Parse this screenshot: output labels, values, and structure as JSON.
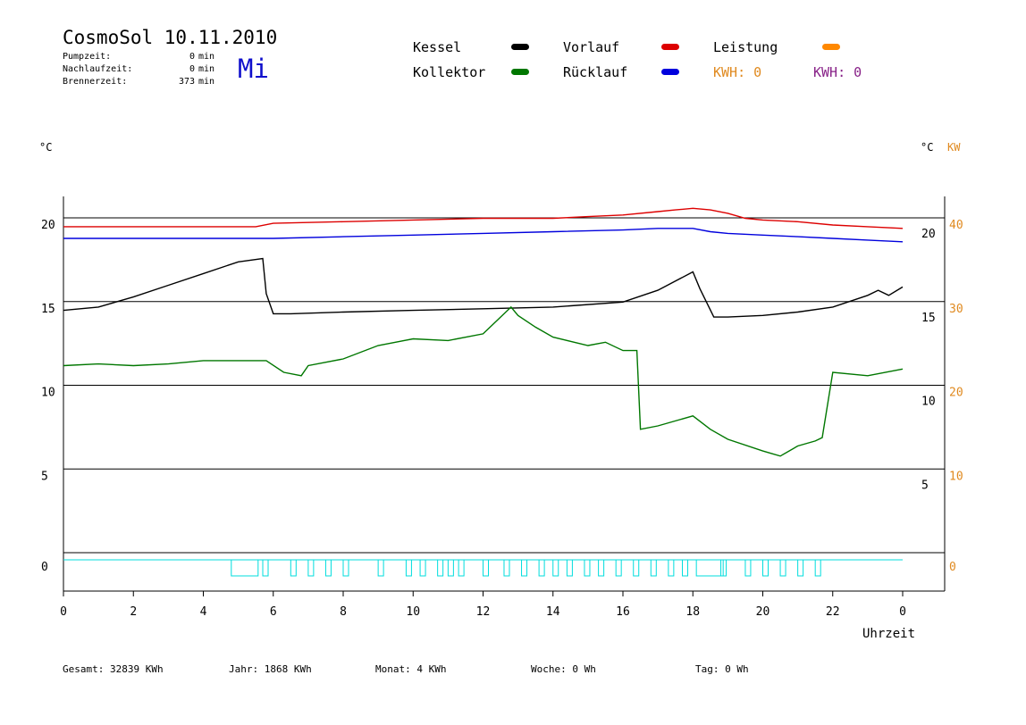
{
  "header": {
    "title": "CosmoSol 10.11.2010",
    "weekday": "Mi",
    "stats": [
      {
        "label": "Pumpzeit:",
        "value": "0",
        "unit": "min"
      },
      {
        "label": "Nachlaufzeit:",
        "value": "0",
        "unit": "min"
      },
      {
        "label": "Brennerzeit:",
        "value": "373",
        "unit": "min"
      }
    ]
  },
  "legend": {
    "kessel": "Kessel",
    "kollektor": "Kollektor",
    "vorlauf": "Vorlauf",
    "ruecklauf": "Rücklauf",
    "leistung": "Leistung",
    "kwh_orange": "KWH: 0",
    "kwh_purple": "KWH: 0"
  },
  "colors": {
    "kessel": "#000000",
    "kollektor": "#007700",
    "vorlauf": "#dd0000",
    "ruecklauf": "#0000dd",
    "leistung": "#ff8800",
    "kwh_purple": "#882288",
    "pump": "#00dddd",
    "weekday": "#1010cc"
  },
  "axes": {
    "left_unit": "°C",
    "right_unit_c": "°C",
    "right_unit_kw": "KW",
    "xlabel": "Uhrzeit"
  },
  "footer": {
    "gesamt": "Gesamt:  32839 KWh",
    "jahr": "Jahr:  1868 KWh",
    "monat": "Monat:       4 KWh",
    "woche": "Woche:     0 Wh",
    "tag": "Tag:     0 Wh"
  },
  "chart_data": {
    "type": "line",
    "title": "",
    "xlabel": "Uhrzeit",
    "ylabel": "°C",
    "xlim": [
      0,
      24
    ],
    "ylim_left": [
      -1.5,
      20.5
    ],
    "x_ticks": [
      "0",
      "2",
      "4",
      "6",
      "8",
      "10",
      "12",
      "14",
      "16",
      "18",
      "20",
      "22",
      "0"
    ],
    "y_ticks_left": [
      "0",
      "5",
      "10",
      "15",
      "20"
    ],
    "y_ticks_right_outer": [
      "20",
      "15",
      "10",
      "5"
    ],
    "y_ticks_right_kw": [
      "0",
      "10",
      "20",
      "30",
      "40"
    ],
    "series": [
      {
        "name": "Vorlauf",
        "color": "#dd0000",
        "x": [
          0,
          2,
          4,
          5.5,
          6,
          8,
          10,
          12,
          14,
          15,
          16,
          17,
          17.5,
          18,
          18.5,
          19,
          19.5,
          20,
          21,
          22,
          23,
          24
        ],
        "y": [
          19.9,
          19.9,
          19.9,
          19.9,
          20.1,
          20.2,
          20.3,
          20.4,
          20.4,
          20.5,
          20.6,
          20.8,
          20.9,
          21.0,
          20.9,
          20.7,
          20.4,
          20.3,
          20.2,
          20.0,
          19.9,
          19.8
        ]
      },
      {
        "name": "Rücklauf",
        "color": "#0000dd",
        "x": [
          0,
          2,
          4,
          5.5,
          6,
          8,
          10,
          12,
          14,
          16,
          17,
          18,
          18.5,
          19,
          20,
          21,
          22,
          23,
          24
        ],
        "y": [
          19.2,
          19.2,
          19.2,
          19.2,
          19.2,
          19.3,
          19.4,
          19.5,
          19.6,
          19.7,
          19.8,
          19.8,
          19.6,
          19.5,
          19.4,
          19.3,
          19.2,
          19.1,
          19.0
        ]
      },
      {
        "name": "Kessel",
        "color": "#000000",
        "x": [
          0,
          1,
          2,
          3,
          4,
          5,
          5.7,
          5.8,
          6,
          6.5,
          8,
          10,
          12,
          14,
          16,
          17,
          18,
          18.2,
          18.6,
          19,
          20,
          21,
          22,
          23,
          23.3,
          23.6,
          24
        ],
        "y": [
          14.9,
          15.1,
          15.7,
          16.4,
          17.1,
          17.8,
          18.0,
          15.9,
          14.7,
          14.7,
          14.8,
          14.9,
          15.0,
          15.1,
          15.4,
          16.1,
          17.2,
          16.2,
          14.5,
          14.5,
          14.6,
          14.8,
          15.1,
          15.8,
          16.1,
          15.8,
          16.3
        ]
      },
      {
        "name": "Kollektor",
        "color": "#007700",
        "x": [
          0,
          1,
          2,
          3,
          4,
          5,
          5.8,
          6.3,
          6.8,
          7,
          8,
          9,
          10,
          11,
          12,
          12.5,
          12.8,
          13,
          13.5,
          14,
          15,
          15.5,
          16,
          16.4,
          16.5,
          17,
          18,
          18.5,
          19,
          20,
          20.5,
          21,
          21.5,
          21.7,
          22,
          23,
          24
        ],
        "y": [
          11.6,
          11.7,
          11.6,
          11.7,
          11.9,
          11.9,
          11.9,
          11.2,
          11.0,
          11.6,
          12.0,
          12.8,
          13.2,
          13.1,
          13.5,
          14.5,
          15.1,
          14.6,
          13.9,
          13.3,
          12.8,
          13.0,
          12.5,
          12.5,
          7.8,
          8.0,
          8.6,
          7.8,
          7.2,
          6.5,
          6.2,
          6.8,
          7.1,
          7.3,
          11.2,
          11.0,
          11.4
        ]
      }
    ],
    "pump_pulses_hours": [
      4.8,
      5.7,
      6.5,
      7.0,
      7.5,
      8.0,
      9.0,
      9.8,
      10.2,
      10.7,
      11.0,
      11.3,
      12.0,
      12.6,
      13.1,
      13.6,
      14.0,
      14.4,
      14.9,
      15.3,
      15.8,
      16.3,
      16.8,
      17.3,
      17.7,
      18.1,
      18.8,
      19.5,
      20.0,
      20.5,
      21.0,
      21.5
    ]
  }
}
